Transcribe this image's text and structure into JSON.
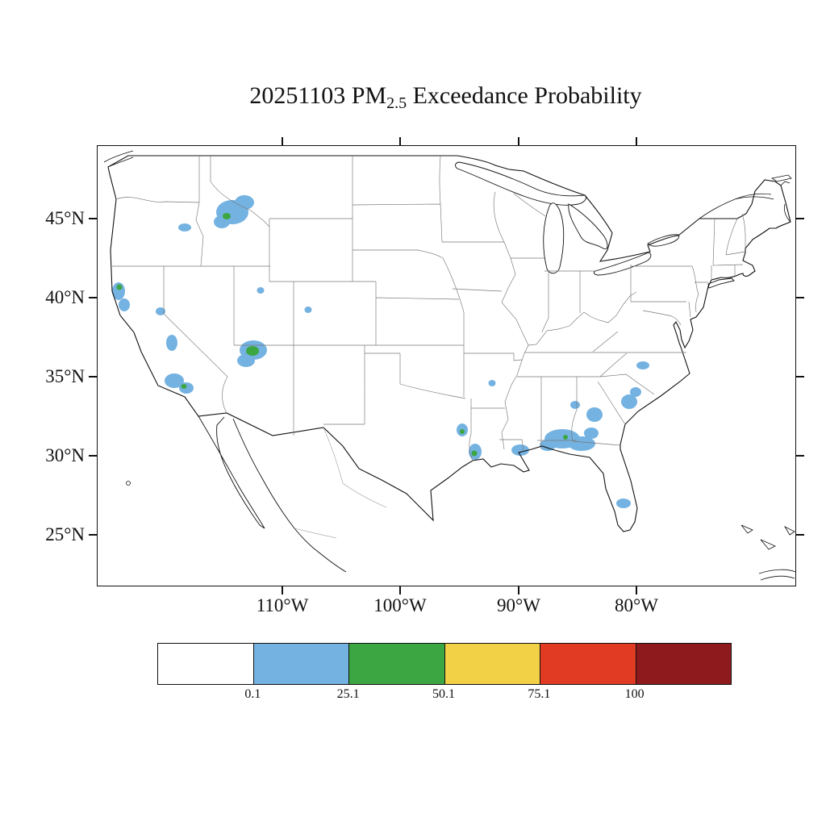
{
  "title": {
    "prefix": "20251103 PM",
    "subscript": "2.5",
    "suffix": " Exceedance Probability"
  },
  "axes": {
    "lat_ticks": [
      "45°N",
      "40°N",
      "35°N",
      "30°N",
      "25°N"
    ],
    "lon_ticks": [
      "110°W",
      "100°W",
      "90°W",
      "80°W"
    ]
  },
  "colorbar": {
    "colors": [
      "#FFFFFF",
      "#74B2E1",
      "#3CA642",
      "#F2D146",
      "#E23B24",
      "#8F1A1D"
    ],
    "labels": [
      "0.1",
      "25.1",
      "50.1",
      "75.1",
      "100"
    ]
  },
  "chart_data": {
    "type": "heatmap",
    "title": "20251103 PM2.5 Exceedance Probability",
    "date": "2025-11-03",
    "variable": "PM2.5 exceedance probability (%)",
    "region": "Continental United States",
    "projection": "conic CONUS map with state boundaries",
    "lat_ticks_deg": [
      45,
      40,
      35,
      30,
      25
    ],
    "lon_ticks_deg": [
      -110,
      -100,
      -90,
      -80
    ],
    "colorbar_levels": [
      0.1,
      25.1,
      50.1,
      75.1,
      100
    ],
    "colorbar_colors": [
      "#FFFFFF",
      "#74B2E1",
      "#3CA642",
      "#F2D146",
      "#E23B24",
      "#8F1A1D"
    ],
    "legend_note": "white < 0.1, blue 0.1-25.1, green 25.1-50.1, yellow 50.1-75.1, red 75.1-100, dark red = 100",
    "hotspots": [
      {
        "region": "Central Idaho / SW Montana",
        "level": 1,
        "probability": "0.1-25.1%",
        "shapes": [
          [
            167,
            82,
            20,
            15
          ],
          [
            182,
            70,
            12,
            9
          ],
          [
            154,
            94,
            10,
            8
          ]
        ]
      },
      {
        "region": "Eastern Oregon",
        "level": 1,
        "probability": "0.1-25.1%",
        "shapes": [
          [
            108,
            101,
            8,
            5
          ]
        ]
      },
      {
        "region": "NW California coast",
        "level": 1,
        "probability": "0.1-25.1%",
        "shapes": [
          [
            26,
            180,
            8,
            11
          ],
          [
            33,
            197,
            7,
            8
          ]
        ]
      },
      {
        "region": "Lake Tahoe area",
        "level": 1,
        "probability": "0.1-25.1%",
        "shapes": [
          [
            78,
            205,
            6,
            5
          ]
        ]
      },
      {
        "region": "Central Sierra Nevada",
        "level": 1,
        "probability": "0.1-25.1%",
        "shapes": [
          [
            92,
            244,
            7,
            10
          ]
        ]
      },
      {
        "region": "Southern California",
        "level": 1,
        "probability": "0.1-25.1%",
        "shapes": [
          [
            95,
            291,
            12,
            9
          ],
          [
            110,
            300,
            9,
            7
          ]
        ]
      },
      {
        "region": "Northern Arizona / S Utah",
        "level": 1,
        "probability": "0.1-25.1%",
        "shapes": [
          [
            193,
            253,
            17,
            12
          ],
          [
            184,
            266,
            11,
            8
          ]
        ]
      },
      {
        "region": "Central Utah",
        "level": 1,
        "probability": "0.1-25.1%",
        "shapes": [
          [
            202,
            179,
            4.5,
            4
          ]
        ]
      },
      {
        "region": "Western Colorado",
        "level": 1,
        "probability": "0.1-25.1%",
        "shapes": [
          [
            261,
            203,
            4.5,
            4
          ]
        ]
      },
      {
        "region": "Central Arkansas",
        "level": 1,
        "probability": "0.1-25.1%",
        "shapes": [
          [
            489,
            294,
            4.5,
            4
          ]
        ]
      },
      {
        "region": "East Texas",
        "level": 1,
        "probability": "0.1-25.1%",
        "shapes": [
          [
            452,
            352,
            7,
            8
          ]
        ]
      },
      {
        "region": "Texas-Louisiana border",
        "level": 1,
        "probability": "0.1-25.1%",
        "shapes": [
          [
            468,
            379,
            8,
            10
          ]
        ]
      },
      {
        "region": "SE Louisiana / S Mississippi",
        "level": 1,
        "probability": "0.1-25.1%",
        "shapes": [
          [
            524,
            377,
            11,
            7
          ]
        ]
      },
      {
        "region": "S Alabama / Florida panhandle / SW Georgia",
        "level": 1,
        "probability": "0.1-25.1%",
        "shapes": [
          [
            576,
            363,
            22,
            12
          ],
          [
            600,
            369,
            17,
            9
          ],
          [
            558,
            371,
            10,
            7
          ],
          [
            612,
            356,
            9,
            7
          ]
        ]
      },
      {
        "region": "Central Georgia",
        "level": 1,
        "probability": "0.1-25.1%",
        "shapes": [
          [
            616,
            333,
            10,
            9
          ]
        ]
      },
      {
        "region": "West Georgia",
        "level": 1,
        "probability": "0.1-25.1%",
        "shapes": [
          [
            592,
            321,
            6,
            5
          ]
        ]
      },
      {
        "region": "Coastal South Carolina",
        "level": 1,
        "probability": "0.1-25.1%",
        "shapes": [
          [
            659,
            317,
            10,
            9
          ],
          [
            667,
            305,
            7,
            6
          ]
        ]
      },
      {
        "region": "Central North Carolina",
        "level": 1,
        "probability": "0.1-25.1%",
        "shapes": [
          [
            676,
            272,
            8,
            5
          ]
        ]
      },
      {
        "region": "South Florida",
        "level": 1,
        "probability": "0.1-25.1%",
        "shapes": [
          [
            652,
            443,
            9,
            6
          ]
        ]
      },
      {
        "region": "Central Idaho core",
        "level": 2,
        "probability": "25.1-50.1%",
        "shapes": [
          [
            160,
            87,
            5,
            4
          ]
        ]
      },
      {
        "region": "NW California core",
        "level": 2,
        "probability": "25.1-50.1%",
        "shapes": [
          [
            27,
            175,
            3.5,
            3.5
          ]
        ]
      },
      {
        "region": "Southern California core",
        "level": 2,
        "probability": "25.1-50.1%",
        "shapes": [
          [
            107,
            298,
            3.5,
            3
          ]
        ]
      },
      {
        "region": "Northern Arizona core",
        "level": 2,
        "probability": "25.1-50.1%",
        "shapes": [
          [
            192,
            254,
            8,
            6
          ]
        ]
      },
      {
        "region": "East Texas core",
        "level": 2,
        "probability": "25.1-50.1%",
        "shapes": [
          [
            452,
            354,
            3,
            3
          ]
        ]
      },
      {
        "region": "Sabine border core",
        "level": 2,
        "probability": "25.1-50.1%",
        "shapes": [
          [
            467,
            381,
            3.5,
            3.5
          ]
        ]
      },
      {
        "region": "SW Georgia core",
        "level": 2,
        "probability": "25.1-50.1%",
        "shapes": [
          [
            580,
            361,
            3,
            3
          ]
        ]
      }
    ]
  }
}
